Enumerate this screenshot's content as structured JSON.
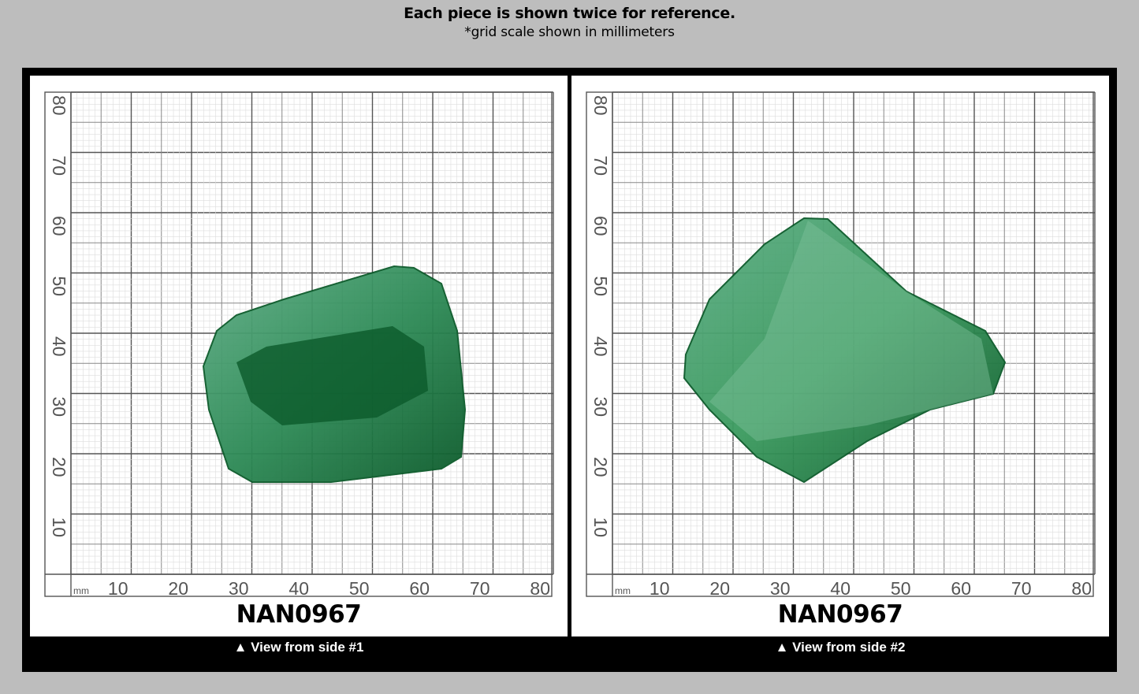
{
  "header": {
    "title": "Each piece is shown twice for reference.",
    "subtitle": "*grid scale shown in millimeters"
  },
  "grid": {
    "unit": "mm",
    "x_labels": [
      "10",
      "20",
      "30",
      "40",
      "50",
      "60",
      "70",
      "80"
    ],
    "y_labels": [
      "80",
      "70",
      "60",
      "50",
      "40",
      "30",
      "20",
      "10"
    ]
  },
  "panels": [
    {
      "code": "NAN0967",
      "caption": "▲ View from side #1",
      "stone_color": "#2e8b57"
    },
    {
      "code": "NAN0967",
      "caption": "▲ View from side #2",
      "stone_color": "#3a9a5e"
    }
  ],
  "colors": {
    "background": "#bdbdbd",
    "frame": "#000000",
    "stone_dark": "#0b5a2a",
    "stone_light": "#5fae86"
  }
}
